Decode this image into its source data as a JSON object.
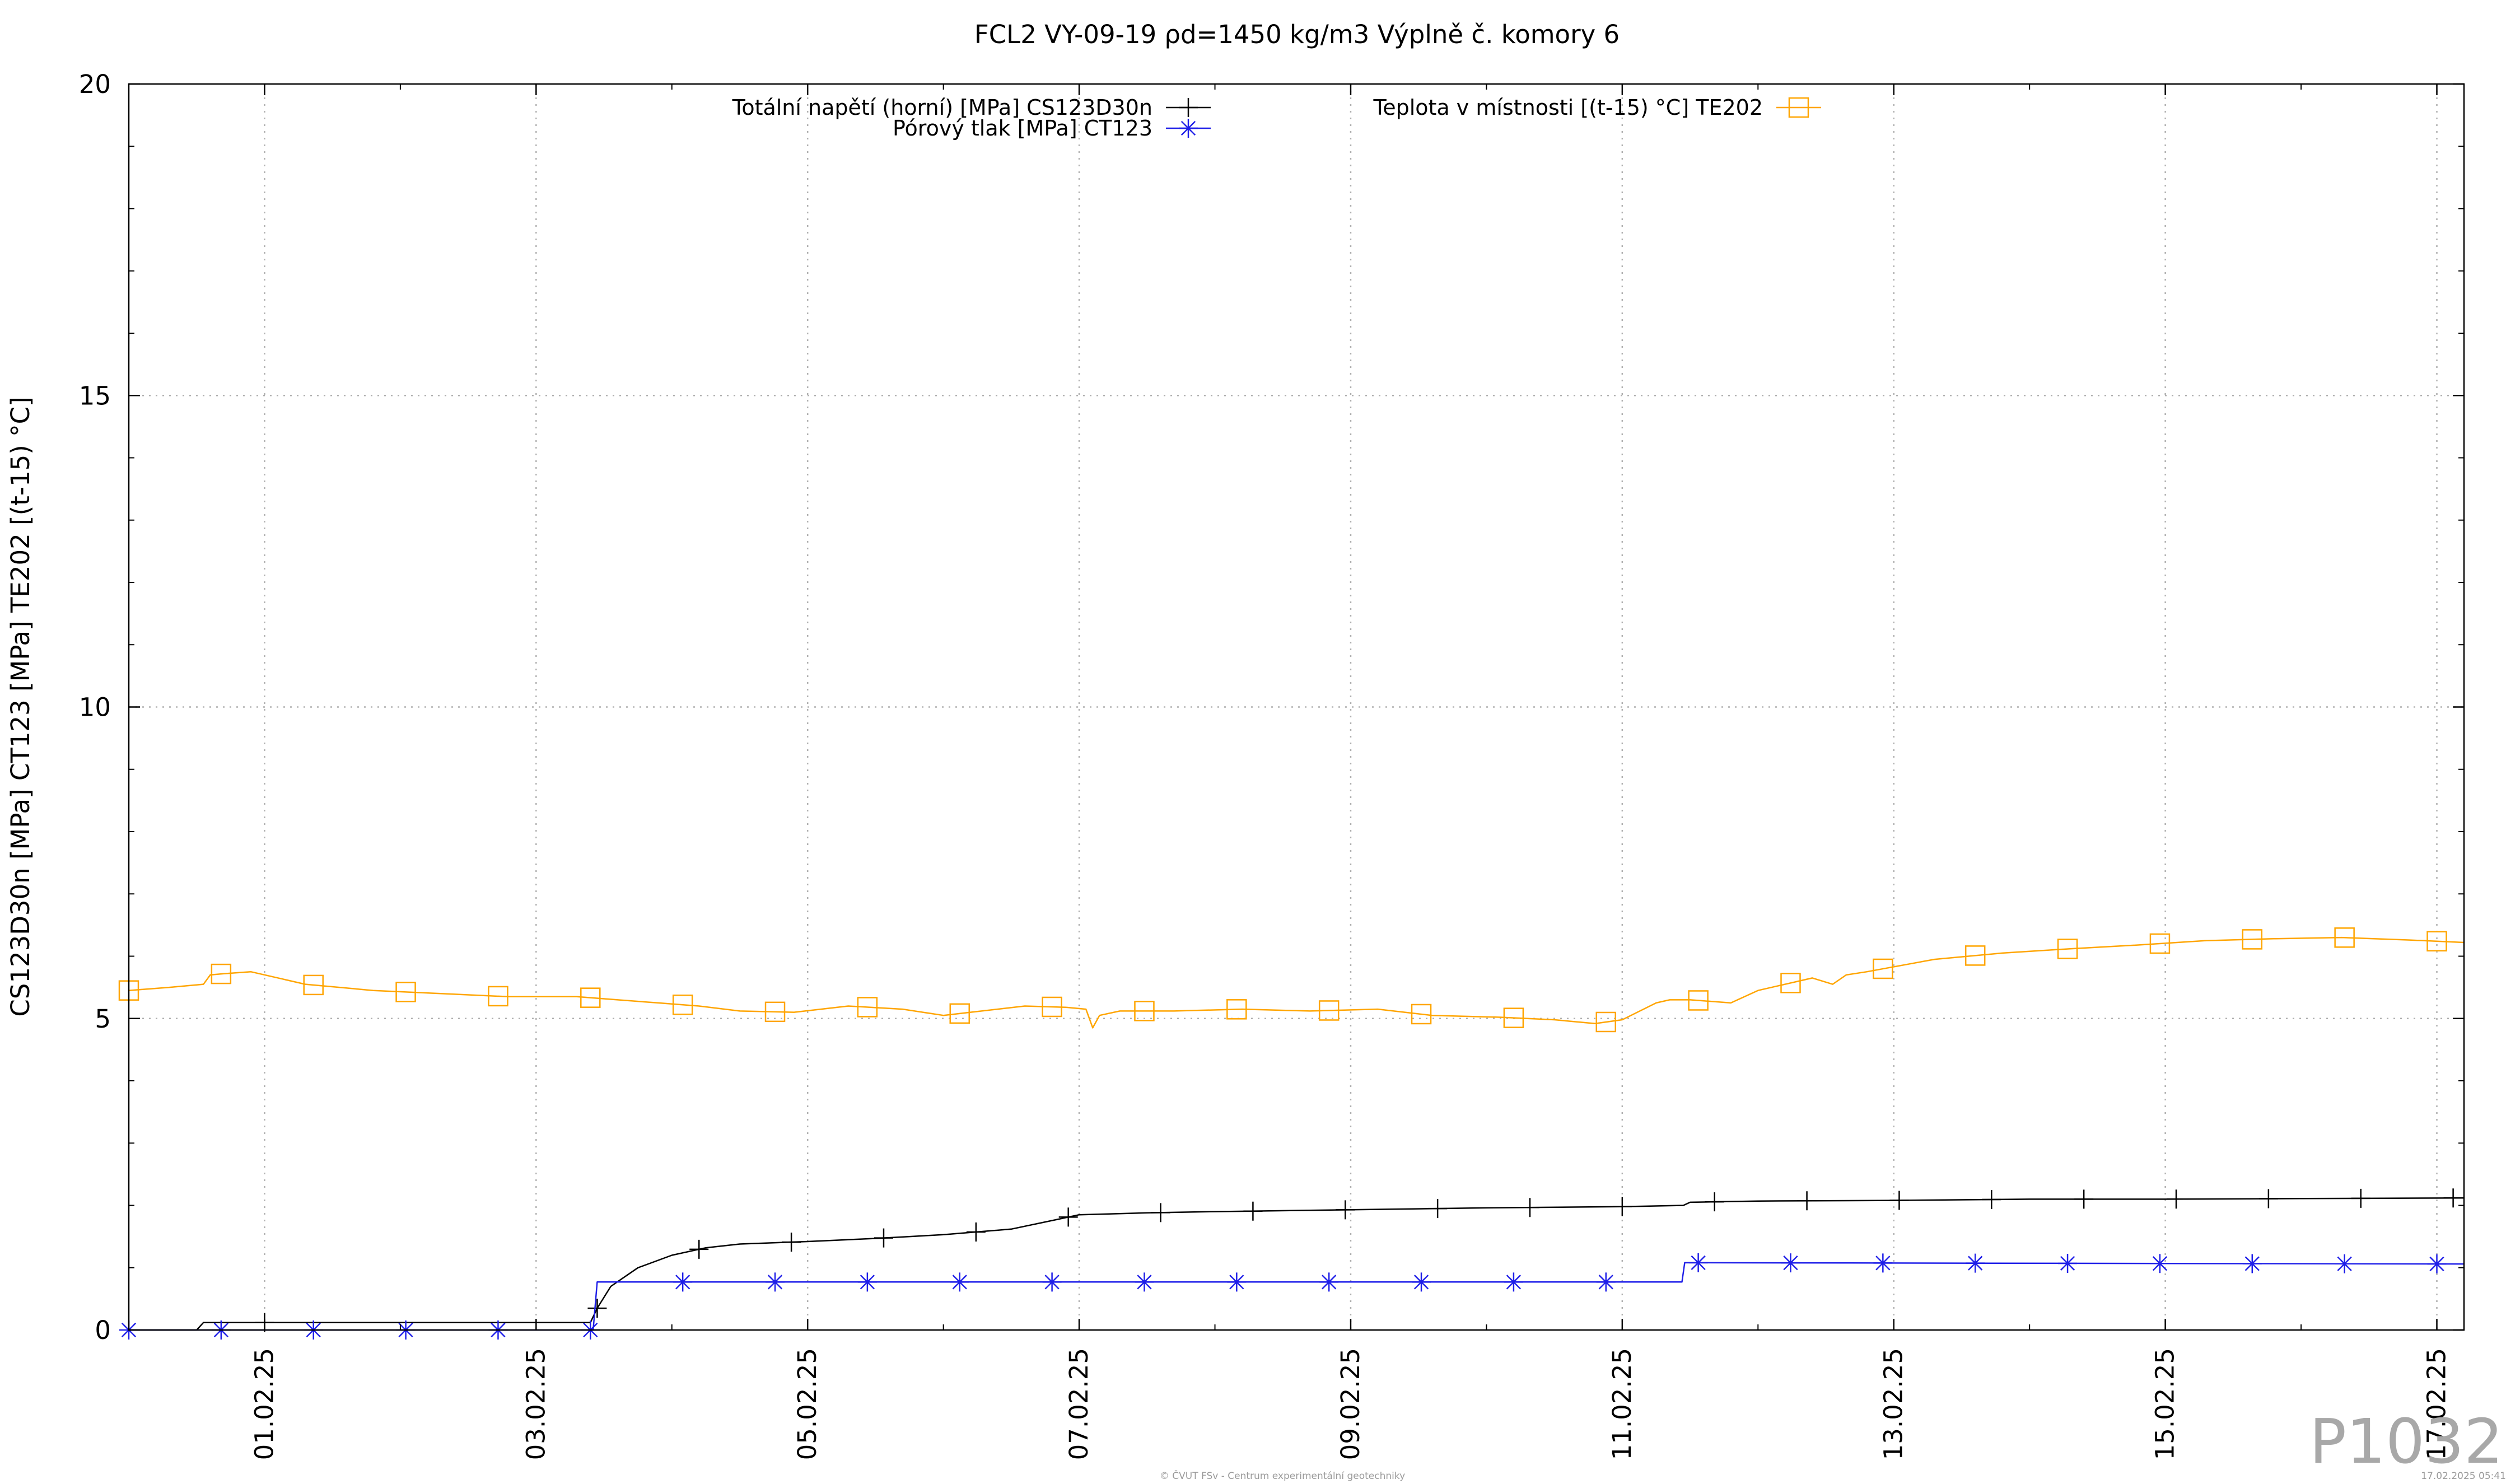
{
  "chart_data": {
    "type": "line",
    "title": "FCL2 VY-09-19 ρd=1450 kg/m3 Výplně č. komory 6",
    "ylabel": "CS123D30n [MPa] CT123 [MPa] TE202 [(t-15) °C]",
    "xlabel": "",
    "ylim": [
      0,
      20
    ],
    "xlim": [
      -1.0,
      16.2
    ],
    "y_ticks": [
      "0",
      "5",
      "10",
      "15",
      "20"
    ],
    "x_ticks": [
      "01.02.25",
      "03.02.25",
      "05.02.25",
      "07.02.25",
      "09.02.25",
      "11.02.25",
      "13.02.25",
      "15.02.25",
      "17.02.25"
    ],
    "grid": true,
    "legend_position": "top",
    "series": [
      {
        "name": "Totální napětí (horní) [MPa] CS123D30n",
        "color": "#000000",
        "marker": "plus",
        "x": [
          -1.0,
          -0.5,
          -0.45,
          0.0,
          1.0,
          2.0,
          2.4,
          2.45,
          2.55,
          2.75,
          3.0,
          3.25,
          3.5,
          4.0,
          4.5,
          5.0,
          5.5,
          5.85,
          6.0,
          6.5,
          7.0,
          8.0,
          9.0,
          10.0,
          10.45,
          10.5,
          11.0,
          12.0,
          13.0,
          14.0,
          15.0,
          16.2
        ],
        "y": [
          0.0,
          0.0,
          0.12,
          0.12,
          0.12,
          0.12,
          0.12,
          0.35,
          0.7,
          1.0,
          1.2,
          1.32,
          1.38,
          1.42,
          1.47,
          1.53,
          1.62,
          1.78,
          1.85,
          1.88,
          1.9,
          1.93,
          1.96,
          1.98,
          2.0,
          2.05,
          2.07,
          2.08,
          2.1,
          2.1,
          2.11,
          2.12
        ],
        "marker_x": [
          0.0,
          2.45,
          3.2,
          3.88,
          4.56,
          5.24,
          5.92,
          6.6,
          7.28,
          7.96,
          8.64,
          9.32,
          10.0,
          10.68,
          11.36,
          12.04,
          12.72,
          13.4,
          14.08,
          14.76,
          15.44,
          16.12
        ]
      },
      {
        "name": "Pórový tlak [MPa] CT123",
        "color": "#1f1fe8",
        "marker": "star",
        "x": [
          -1.0,
          2.42,
          2.45,
          10.44,
          10.46,
          16.2
        ],
        "y": [
          0.0,
          0.0,
          0.77,
          0.77,
          1.08,
          1.06
        ],
        "marker_x": [
          -1.0,
          -0.32,
          0.36,
          1.04,
          1.72,
          2.4,
          3.08,
          3.76,
          4.44,
          5.12,
          5.8,
          6.48,
          7.16,
          7.84,
          8.52,
          9.2,
          9.88,
          10.56,
          11.24,
          11.92,
          12.6,
          13.28,
          13.96,
          14.64,
          15.32,
          16.0
        ]
      },
      {
        "name": "Teplota v místnosti [(t-15) °C] TE202",
        "color": "#ffa500",
        "marker": "square",
        "x": [
          -1.0,
          -0.7,
          -0.45,
          -0.4,
          -0.3,
          -0.1,
          0.3,
          0.8,
          1.3,
          1.8,
          2.3,
          2.6,
          2.9,
          3.2,
          3.5,
          3.9,
          4.3,
          4.7,
          5.0,
          5.2,
          5.6,
          5.9,
          6.05,
          6.1,
          6.15,
          6.3,
          6.7,
          7.2,
          7.7,
          8.2,
          8.6,
          9.1,
          9.5,
          9.8,
          10.0,
          10.25,
          10.35,
          10.5,
          10.8,
          11.0,
          11.3,
          11.4,
          11.55,
          11.65,
          11.8,
          12.3,
          12.8,
          13.3,
          13.8,
          14.3,
          14.8,
          15.3,
          15.8,
          16.2
        ],
        "y": [
          5.45,
          5.5,
          5.55,
          5.7,
          5.72,
          5.75,
          5.55,
          5.45,
          5.4,
          5.35,
          5.35,
          5.3,
          5.25,
          5.2,
          5.12,
          5.1,
          5.2,
          5.15,
          5.05,
          5.1,
          5.2,
          5.18,
          5.15,
          4.85,
          5.05,
          5.12,
          5.12,
          5.15,
          5.12,
          5.15,
          5.05,
          5.02,
          4.98,
          4.92,
          4.98,
          5.25,
          5.3,
          5.3,
          5.25,
          5.45,
          5.6,
          5.65,
          5.55,
          5.7,
          5.75,
          5.95,
          6.05,
          6.12,
          6.18,
          6.25,
          6.28,
          6.3,
          6.26,
          6.22
        ],
        "marker_x": [
          -1.0,
          -0.32,
          0.36,
          1.04,
          1.72,
          2.4,
          3.08,
          3.76,
          4.44,
          5.12,
          5.8,
          6.48,
          7.16,
          7.84,
          8.52,
          9.2,
          9.88,
          10.56,
          11.24,
          11.92,
          12.6,
          13.28,
          13.96,
          14.64,
          15.32,
          16.0
        ]
      }
    ]
  },
  "watermark": "P1032",
  "footer_center": "© ČVUT FSv - Centrum experimentální geotechniky",
  "footer_right": "17.02.2025 05:41"
}
